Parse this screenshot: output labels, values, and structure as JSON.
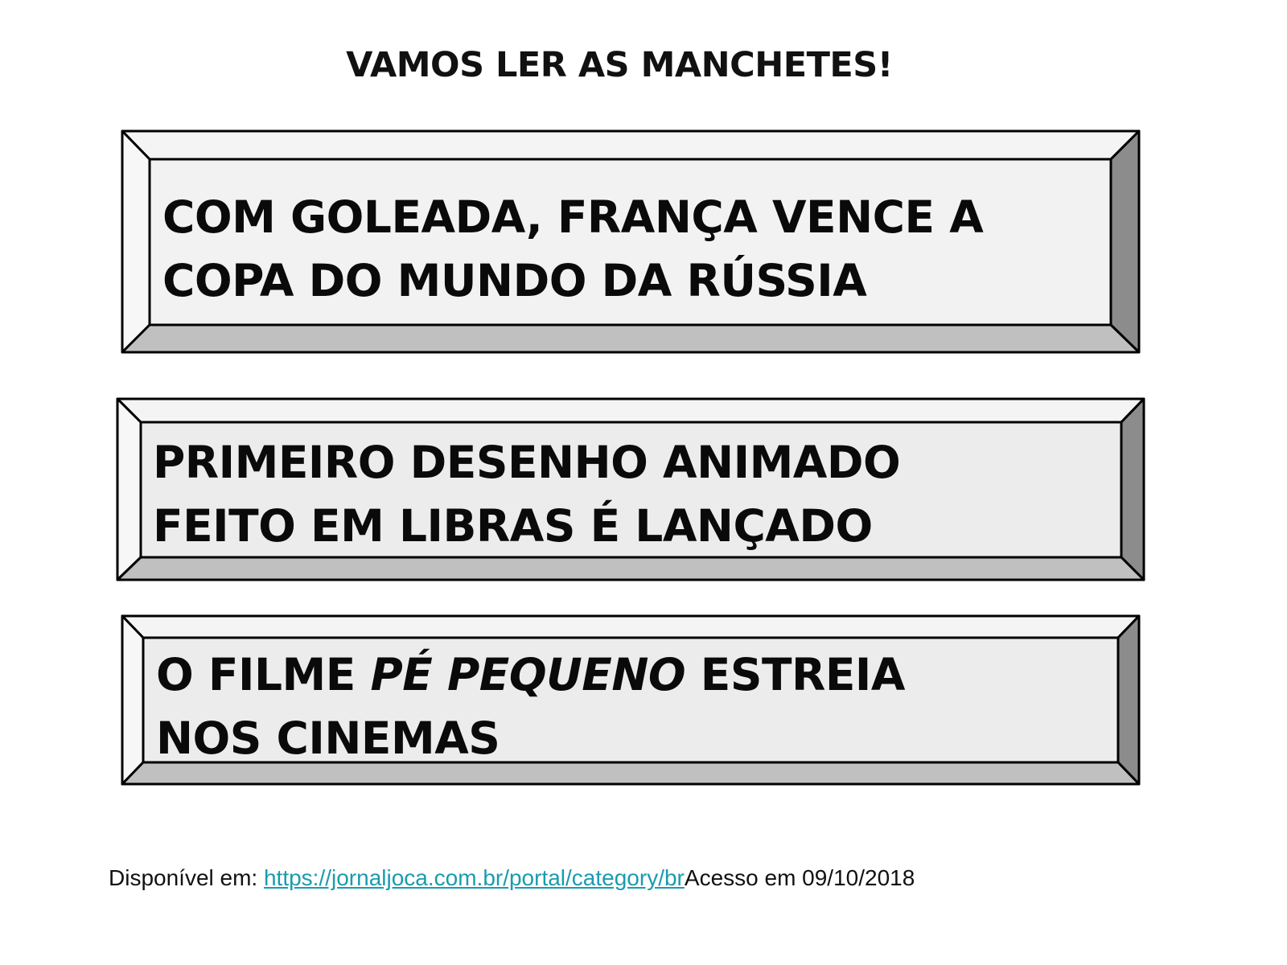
{
  "title": "VAMOS LER AS MANCHETES!",
  "headlines": [
    {
      "line1": "COM GOLEADA, FRANÇA VENCE A",
      "line2": "COPA DO MUNDO DA RÚSSIA"
    },
    {
      "line1": "PRIMEIRO DESENHO ANIMADO",
      "line2": "FEITO EM LIBRAS É LANÇADO"
    },
    {
      "line1_prefix": "O FILME ",
      "line1_italic": "PÉ PEQUENO",
      "line1_suffix": " ESTREIA",
      "line2": "NOS CINEMAS"
    }
  ],
  "footer": {
    "prefix": "Disponível em: ",
    "link": "https://jornaljoca.com.br/portal/category/br",
    "suffix": "Acesso em 09/10/2018"
  },
  "colors": {
    "bevel_top": "#f4f4f4",
    "bevel_left": "#f7f7f7",
    "bevel_right": "#8c8c8c",
    "bevel_bottom": "#c0c0c0",
    "face": "#f2f2f2",
    "link": "#1a9bb0"
  }
}
